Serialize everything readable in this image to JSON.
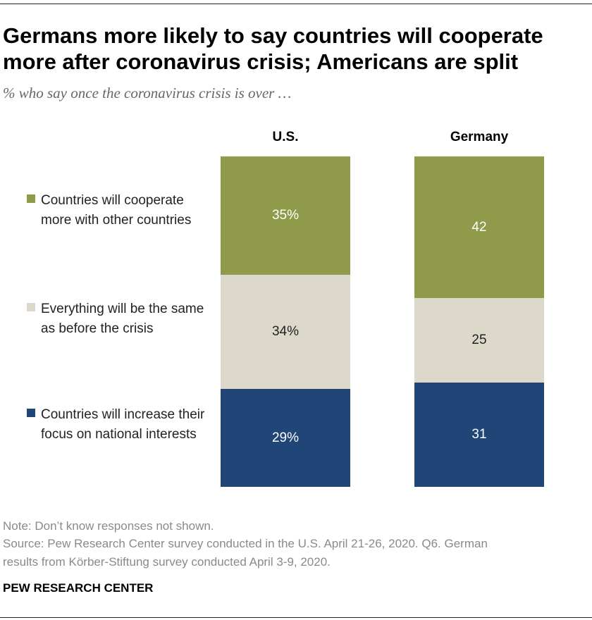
{
  "title": "Germans more likely to say countries will cooperate more after coronavirus crisis; Americans are split",
  "subtitle": "% who say once the coronavirus crisis is over …",
  "legend": [
    {
      "label": "Countries will cooperate more with other countries",
      "color": "#8f9b4b"
    },
    {
      "label": "Everything will be the same as before the crisis",
      "color": "#dcd9ca"
    },
    {
      "label": "Countries will increase their focus on national interests",
      "color": "#1f4677"
    }
  ],
  "chart_data": {
    "type": "bar",
    "stacked": true,
    "categories": [
      "U.S.",
      "Germany"
    ],
    "series": [
      {
        "name": "Countries will cooperate more with other countries",
        "values": [
          35,
          42
        ],
        "labels": [
          "35%",
          "42"
        ],
        "color": "#8f9b4b",
        "label_color": "#ffffff"
      },
      {
        "name": "Everything will be the same as before the crisis",
        "values": [
          34,
          25
        ],
        "labels": [
          "34%",
          "25"
        ],
        "color": "#dcd9ca",
        "label_color": "#222222"
      },
      {
        "name": "Countries will increase their focus on national interests",
        "values": [
          29,
          31
        ],
        "labels": [
          "29%",
          "31"
        ],
        "color": "#1f4677",
        "label_color": "#ffffff"
      }
    ],
    "ylim": [
      0,
      98
    ],
    "grid": false,
    "legend_position": "left"
  },
  "footer": {
    "note": "Note: Don’t know responses not shown.",
    "source_line1": "Source: Pew Research Center survey conducted in the U.S. April 21-26, 2020. Q6. German",
    "source_line2": "results from Körber-Stiftung survey conducted April 3-9, 2020.",
    "brand": "PEW RESEARCH CENTER"
  }
}
